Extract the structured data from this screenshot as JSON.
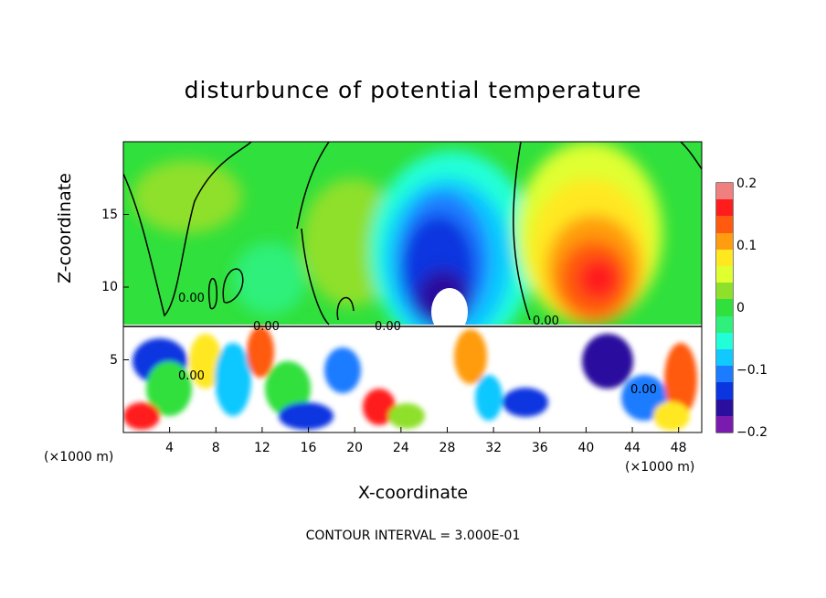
{
  "chart_data": {
    "type": "heatmap",
    "title": "disturbunce of potential temperature",
    "xlabel": "X-coordinate",
    "ylabel": "Z-coordinate",
    "x_unit": "(×1000 m)",
    "xlim": [
      0,
      50
    ],
    "ylim": [
      0,
      20
    ],
    "x_ticks": [
      "4",
      "8",
      "12",
      "16",
      "20",
      "24",
      "28",
      "32",
      "36",
      "40",
      "44",
      "48"
    ],
    "y_ticks": [
      "5",
      "10",
      "15"
    ],
    "colorbar": {
      "range": [
        -0.2,
        0.2
      ],
      "tick_labels": [
        "0.2",
        "0.1",
        "0",
        "−0.1",
        "−0.2"
      ],
      "colors": [
        "#7a1bb0",
        "#2a0e9e",
        "#0a35e0",
        "#1c7cff",
        "#11c8ff",
        "#22ffd8",
        "#2ef07a",
        "#30e03c",
        "#8fe02a",
        "#dfff30",
        "#ffe820",
        "#ff9c10",
        "#ff5a10",
        "#ff1c1c",
        "#f08080"
      ]
    },
    "contour_labels": [
      "0.00",
      "0.00",
      "0.00",
      "0.00",
      "0.00",
      "0.00"
    ],
    "footer": "CONTOUR INTERVAL = 3.000E-01"
  }
}
